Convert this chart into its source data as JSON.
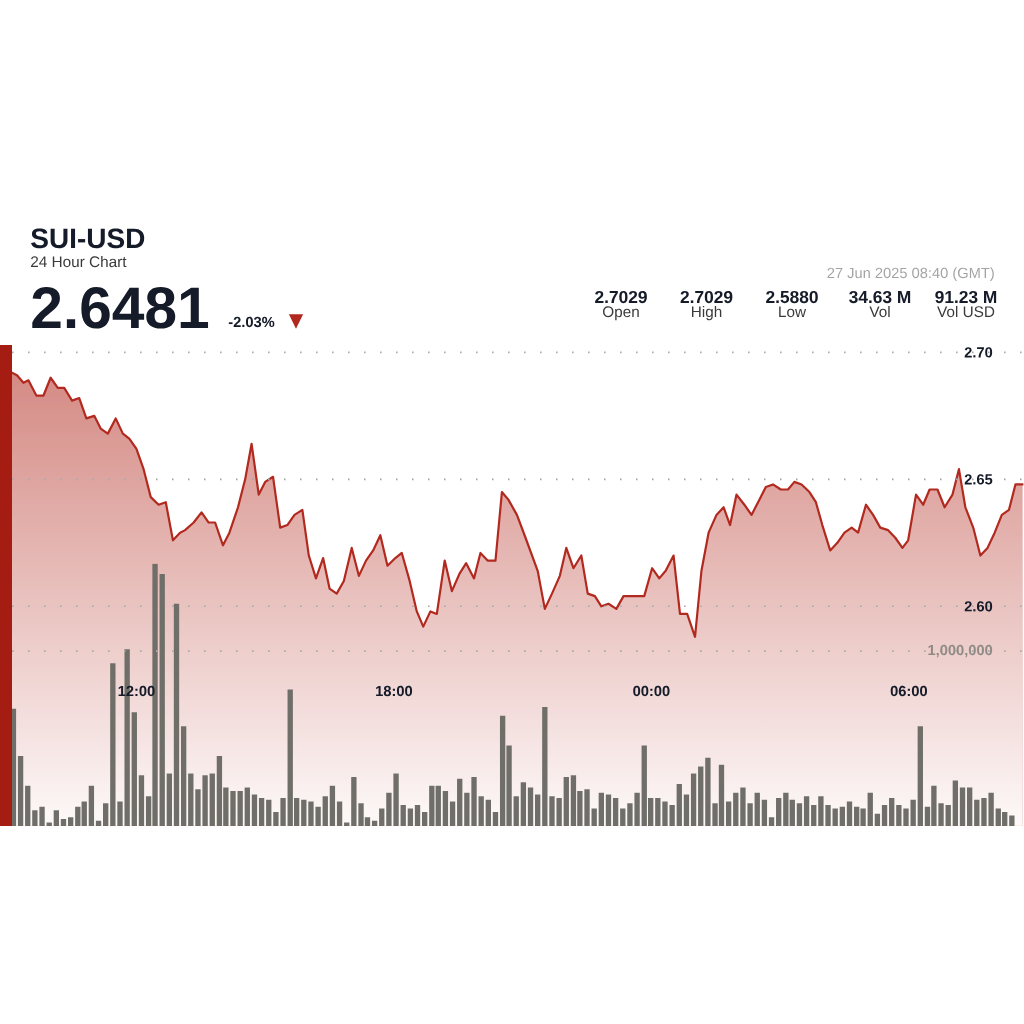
{
  "chart_data": {
    "type": "area",
    "title": "SUI-USD",
    "subtitle": "24 Hour Chart",
    "annotations": [
      "2.6481",
      "-2.03%",
      "▼",
      "2.7029",
      "Open",
      "2.7029",
      "High",
      "2.5880",
      "Low",
      "34.63 M",
      "Vol",
      "91.23 M",
      "Vol USD",
      "27 Jun 2025 08:40 (GMT)"
    ],
    "xlim": [
      "2025-06-26T09:06",
      "2025-06-27T08:41"
    ],
    "xticks": [
      {
        "value": "2025-06-26T12:00",
        "label": "12:00"
      },
      {
        "value": "2025-06-26T18:00",
        "label": "18:00"
      },
      {
        "value": "2025-06-27T00:00",
        "label": "00:00"
      },
      {
        "value": "2025-06-27T06:00",
        "label": "06:00"
      }
    ],
    "ylim": [
      2.5135,
      2.7029
    ],
    "yticks": [
      {
        "value": 2.6,
        "label": "2.60"
      },
      2.65,
      {
        "value": 2.7,
        "label": "2.70"
      }
    ],
    "y2lim": [
      0,
      2750000
    ],
    "y2ticks": [
      {
        "value": 1000000,
        "label": "1,000,000"
      }
    ],
    "grid": "y",
    "series": [
      {
        "color": "#b22a1f",
        "x": [
          "2025-06-26T09:06",
          "2025-06-26T09:13",
          "2025-06-26T09:22",
          "2025-06-26T09:29",
          "2025-06-26T09:40",
          "2025-06-26T09:50",
          "2025-06-26T10:00",
          "2025-06-26T10:10",
          "2025-06-26T10:19",
          "2025-06-26T10:30",
          "2025-06-26T10:40",
          "2025-06-26T10:50",
          "2025-06-26T11:01",
          "2025-06-26T11:10",
          "2025-06-26T11:20",
          "2025-06-26T11:31",
          "2025-06-26T11:41",
          "2025-06-26T11:50",
          "2025-06-26T12:00",
          "2025-06-26T12:10",
          "2025-06-26T12:20",
          "2025-06-26T12:31",
          "2025-06-26T12:41",
          "2025-06-26T12:51",
          "2025-06-26T13:01",
          "2025-06-26T13:08",
          "2025-06-26T13:20",
          "2025-06-26T13:31",
          "2025-06-26T13:41",
          "2025-06-26T13:50",
          "2025-06-26T14:01",
          "2025-06-26T14:10",
          "2025-06-26T14:22",
          "2025-06-26T14:32",
          "2025-06-26T14:41",
          "2025-06-26T14:51",
          "2025-06-26T15:00",
          "2025-06-26T15:11",
          "2025-06-26T15:21",
          "2025-06-26T15:31",
          "2025-06-26T15:41",
          "2025-06-26T15:52",
          "2025-06-26T16:01",
          "2025-06-26T16:11",
          "2025-06-26T16:21",
          "2025-06-26T16:30",
          "2025-06-26T16:40",
          "2025-06-26T16:50",
          "2025-06-26T17:01",
          "2025-06-26T17:11",
          "2025-06-26T17:21",
          "2025-06-26T17:31",
          "2025-06-26T17:41",
          "2025-06-26T17:51",
          "2025-06-26T18:02",
          "2025-06-26T18:11",
          "2025-06-26T18:22",
          "2025-06-26T18:32",
          "2025-06-26T18:41",
          "2025-06-26T18:51",
          "2025-06-26T19:00",
          "2025-06-26T19:11",
          "2025-06-26T19:21",
          "2025-06-26T19:32",
          "2025-06-26T19:41",
          "2025-06-26T19:52",
          "2025-06-26T20:01",
          "2025-06-26T20:11",
          "2025-06-26T20:22",
          "2025-06-26T20:31",
          "2025-06-26T20:40",
          "2025-06-26T20:52",
          "2025-06-26T21:04",
          "2025-06-26T21:21",
          "2025-06-26T21:31",
          "2025-06-26T21:41",
          "2025-06-26T21:52",
          "2025-06-26T22:01",
          "2025-06-26T22:11",
          "2025-06-26T22:22",
          "2025-06-26T22:31",
          "2025-06-26T22:41",
          "2025-06-26T22:50",
          "2025-06-26T23:00",
          "2025-06-26T23:11",
          "2025-06-26T23:21",
          "2025-06-26T23:32",
          "2025-06-26T23:50",
          "2025-06-27T00:01",
          "2025-06-27T00:11",
          "2025-06-27T00:20",
          "2025-06-27T00:31",
          "2025-06-27T00:40",
          "2025-06-27T00:50",
          "2025-06-27T01:01",
          "2025-06-27T01:10",
          "2025-06-27T01:20",
          "2025-06-27T01:31",
          "2025-06-27T01:41",
          "2025-06-27T01:50",
          "2025-06-27T01:59",
          "2025-06-27T02:10",
          "2025-06-27T02:20",
          "2025-06-27T02:31",
          "2025-06-27T02:40",
          "2025-06-27T02:50",
          "2025-06-27T03:01",
          "2025-06-27T03:11",
          "2025-06-27T03:20",
          "2025-06-27T03:30",
          "2025-06-27T03:41",
          "2025-06-27T03:50",
          "2025-06-27T03:59",
          "2025-06-27T04:10",
          "2025-06-27T04:20",
          "2025-06-27T04:30",
          "2025-06-27T04:40",
          "2025-06-27T04:49",
          "2025-06-27T05:00",
          "2025-06-27T05:10",
          "2025-06-27T05:20",
          "2025-06-27T05:31",
          "2025-06-27T05:41",
          "2025-06-27T05:51",
          "2025-06-27T05:59",
          "2025-06-27T06:10",
          "2025-06-27T06:20",
          "2025-06-27T06:29",
          "2025-06-27T06:40",
          "2025-06-27T06:50",
          "2025-06-27T07:01",
          "2025-06-27T07:10",
          "2025-06-27T07:19",
          "2025-06-27T07:30",
          "2025-06-27T07:40",
          "2025-06-27T07:50",
          "2025-06-27T08:00",
          "2025-06-27T08:10",
          "2025-06-27T08:20",
          "2025-06-27T08:29",
          "2025-06-27T08:39"
        ],
        "values": [
          2.692,
          2.691,
          2.688,
          2.689,
          2.683,
          2.683,
          2.69,
          2.686,
          2.686,
          2.681,
          2.682,
          2.674,
          2.675,
          2.67,
          2.668,
          2.674,
          2.668,
          2.666,
          2.662,
          2.654,
          2.643,
          2.64,
          2.641,
          2.626,
          2.629,
          2.63,
          2.633,
          2.637,
          2.633,
          2.633,
          2.624,
          2.629,
          2.639,
          2.65,
          2.664,
          2.644,
          2.649,
          2.651,
          2.631,
          2.632,
          2.636,
          2.638,
          2.62,
          2.611,
          2.619,
          2.607,
          2.605,
          2.61,
          2.623,
          2.612,
          2.618,
          2.622,
          2.628,
          2.616,
          2.619,
          2.621,
          2.61,
          2.598,
          2.592,
          2.598,
          2.597,
          2.618,
          2.606,
          2.613,
          2.617,
          2.611,
          2.621,
          2.618,
          2.618,
          2.645,
          2.642,
          2.636,
          2.627,
          2.614,
          2.599,
          2.605,
          2.612,
          2.623,
          2.615,
          2.62,
          2.605,
          2.604,
          2.6,
          2.601,
          2.599,
          2.604,
          2.604,
          2.604,
          2.615,
          2.611,
          2.614,
          2.62,
          2.597,
          2.597,
          2.588,
          2.614,
          2.629,
          2.636,
          2.639,
          2.632,
          2.644,
          2.64,
          2.636,
          2.642,
          2.647,
          2.648,
          2.646,
          2.646,
          2.649,
          2.648,
          2.645,
          2.641,
          2.632,
          2.622,
          2.625,
          2.629,
          2.631,
          2.629,
          2.64,
          2.636,
          2.631,
          2.63,
          2.627,
          2.623,
          2.626,
          2.644,
          2.64,
          2.646,
          2.646,
          2.639,
          2.644,
          2.654,
          2.639,
          2.631,
          2.62,
          2.623,
          2.629,
          2.636,
          2.638,
          2.648,
          2.648
        ]
      },
      {
        "type": "bar",
        "axis": "y2",
        "color": "#6f6e68",
        "x": [
          "2025-06-26T09:08",
          "2025-06-26T09:18",
          "2025-06-26T09:28",
          "2025-06-26T09:38",
          "2025-06-26T09:48",
          "2025-06-26T09:58",
          "2025-06-26T10:08",
          "2025-06-26T10:18",
          "2025-06-26T10:28",
          "2025-06-26T10:38",
          "2025-06-26T10:47",
          "2025-06-26T10:57",
          "2025-06-26T11:07",
          "2025-06-26T11:17",
          "2025-06-26T11:27",
          "2025-06-26T11:37",
          "2025-06-26T11:47",
          "2025-06-26T11:57",
          "2025-06-26T12:07",
          "2025-06-26T12:17",
          "2025-06-26T12:26",
          "2025-06-26T12:36",
          "2025-06-26T12:46",
          "2025-06-26T12:56",
          "2025-06-26T13:06",
          "2025-06-26T13:16",
          "2025-06-26T13:26",
          "2025-06-26T13:36",
          "2025-06-26T13:46",
          "2025-06-26T13:56",
          "2025-06-26T14:05",
          "2025-06-26T14:15",
          "2025-06-26T14:25",
          "2025-06-26T14:35",
          "2025-06-26T14:45",
          "2025-06-26T14:55",
          "2025-06-26T15:05",
          "2025-06-26T15:15",
          "2025-06-26T15:25",
          "2025-06-26T15:35",
          "2025-06-26T15:44",
          "2025-06-26T15:54",
          "2025-06-26T16:04",
          "2025-06-26T16:14",
          "2025-06-26T16:24",
          "2025-06-26T16:34",
          "2025-06-26T16:44",
          "2025-06-26T16:54",
          "2025-06-26T17:04",
          "2025-06-26T17:14",
          "2025-06-26T17:23",
          "2025-06-26T17:33",
          "2025-06-26T17:43",
          "2025-06-26T17:53",
          "2025-06-26T18:03",
          "2025-06-26T18:13",
          "2025-06-26T18:23",
          "2025-06-26T18:33",
          "2025-06-26T18:43",
          "2025-06-26T18:53",
          "2025-06-26T19:02",
          "2025-06-26T19:12",
          "2025-06-26T19:22",
          "2025-06-26T19:32",
          "2025-06-26T19:42",
          "2025-06-26T19:52",
          "2025-06-26T20:02",
          "2025-06-26T20:12",
          "2025-06-26T20:22",
          "2025-06-26T20:32",
          "2025-06-26T20:41",
          "2025-06-26T20:51",
          "2025-06-26T21:01",
          "2025-06-26T21:11",
          "2025-06-26T21:21",
          "2025-06-26T21:31",
          "2025-06-26T21:41",
          "2025-06-26T21:51",
          "2025-06-26T22:01",
          "2025-06-26T22:11",
          "2025-06-26T22:20",
          "2025-06-26T22:30",
          "2025-06-26T22:40",
          "2025-06-26T22:50",
          "2025-06-26T23:00",
          "2025-06-26T23:10",
          "2025-06-26T23:20",
          "2025-06-26T23:30",
          "2025-06-26T23:40",
          "2025-06-26T23:50",
          "2025-06-26T23:59",
          "2025-06-27T00:09",
          "2025-06-27T00:19",
          "2025-06-27T00:29",
          "2025-06-27T00:39",
          "2025-06-27T00:49",
          "2025-06-27T00:59",
          "2025-06-27T01:09",
          "2025-06-27T01:19",
          "2025-06-27T01:29",
          "2025-06-27T01:38",
          "2025-06-27T01:48",
          "2025-06-27T01:58",
          "2025-06-27T02:08",
          "2025-06-27T02:18",
          "2025-06-27T02:28",
          "2025-06-27T02:38",
          "2025-06-27T02:48",
          "2025-06-27T02:58",
          "2025-06-27T03:08",
          "2025-06-27T03:17",
          "2025-06-27T03:27",
          "2025-06-27T03:37",
          "2025-06-27T03:47",
          "2025-06-27T03:57",
          "2025-06-27T04:07",
          "2025-06-27T04:17",
          "2025-06-27T04:27",
          "2025-06-27T04:37",
          "2025-06-27T04:47",
          "2025-06-27T04:56",
          "2025-06-27T05:06",
          "2025-06-27T05:16",
          "2025-06-27T05:26",
          "2025-06-27T05:36",
          "2025-06-27T05:46",
          "2025-06-27T05:56",
          "2025-06-27T06:06",
          "2025-06-27T06:16",
          "2025-06-27T06:26",
          "2025-06-27T06:35",
          "2025-06-27T06:45",
          "2025-06-27T06:55",
          "2025-06-27T07:05",
          "2025-06-27T07:15",
          "2025-06-27T07:25",
          "2025-06-27T07:35",
          "2025-06-27T07:45",
          "2025-06-27T07:55",
          "2025-06-27T08:05",
          "2025-06-27T08:14",
          "2025-06-27T08:24"
        ],
        "values": [
          670000,
          400000,
          230000,
          90000,
          110000,
          20000,
          90000,
          40000,
          50000,
          110000,
          140000,
          230000,
          30000,
          130000,
          930000,
          140000,
          1010000,
          650000,
          290000,
          170000,
          1500000,
          1440000,
          300000,
          1270000,
          570000,
          300000,
          210000,
          290000,
          300000,
          400000,
          220000,
          200000,
          200000,
          220000,
          180000,
          160000,
          150000,
          80000,
          160000,
          780000,
          160000,
          150000,
          140000,
          110000,
          170000,
          230000,
          140000,
          20000,
          280000,
          130000,
          50000,
          30000,
          100000,
          190000,
          300000,
          120000,
          100000,
          120000,
          80000,
          230000,
          230000,
          200000,
          140000,
          270000,
          190000,
          280000,
          170000,
          150000,
          80000,
          630000,
          460000,
          170000,
          250000,
          220000,
          180000,
          680000,
          170000,
          160000,
          280000,
          290000,
          200000,
          210000,
          100000,
          190000,
          180000,
          160000,
          100000,
          130000,
          190000,
          460000,
          160000,
          160000,
          140000,
          120000,
          240000,
          180000,
          300000,
          340000,
          390000,
          130000,
          350000,
          140000,
          190000,
          220000,
          130000,
          190000,
          150000,
          50000,
          160000,
          190000,
          150000,
          130000,
          170000,
          120000,
          170000,
          120000,
          100000,
          110000,
          140000,
          110000,
          100000,
          190000,
          70000,
          120000,
          160000,
          120000,
          100000,
          150000,
          570000,
          110000,
          230000,
          130000,
          120000,
          260000,
          220000,
          220000,
          150000,
          160000,
          190000,
          100000,
          80000,
          60000
        ]
      }
    ]
  }
}
